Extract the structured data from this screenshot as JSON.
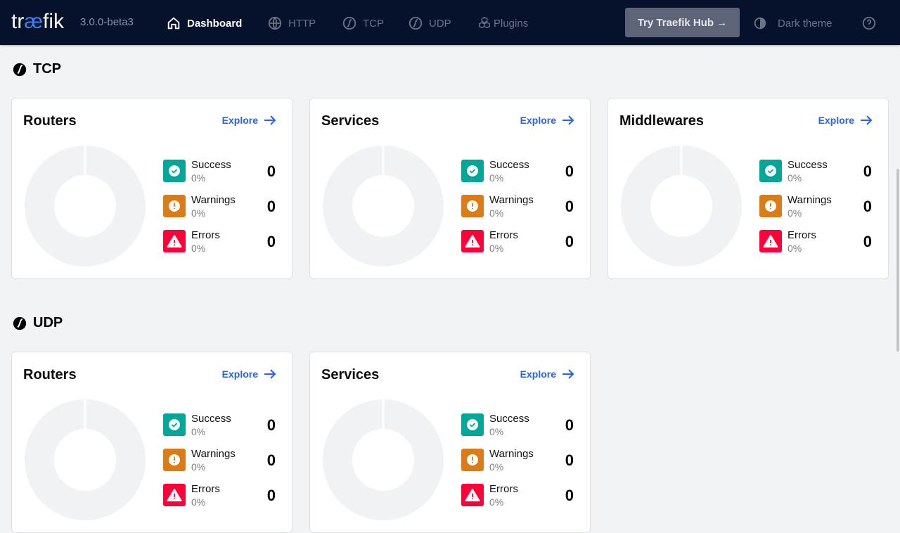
{
  "nav": {
    "logo": "traefik",
    "logo_parts": [
      "tr",
      "æ",
      "fik"
    ],
    "version": "3.0.0-beta3",
    "links": [
      {
        "label": "Dashboard",
        "icon": "home-icon",
        "active": true
      },
      {
        "label": "HTTP",
        "icon": "globe-icon"
      },
      {
        "label": "TCP",
        "icon": "tcp-icon"
      },
      {
        "label": "UDP",
        "icon": "udp-icon"
      },
      {
        "label": "Plugins",
        "icon": "cubes-icon"
      }
    ],
    "hub": "Try Traefik Hub →",
    "theme": "Dark theme",
    "help_icon": "help-icon"
  },
  "colors": {
    "success": "#00a697",
    "warning": "#db7b15",
    "error": "#ff0039",
    "link": "#2563eb"
  },
  "sections": [
    {
      "title": "TCP",
      "cards": [
        {
          "title": "Routers",
          "explore": "Explore",
          "stats": [
            {
              "label": "Success",
              "pct": "0%",
              "value": "0"
            },
            {
              "label": "Warnings",
              "pct": "0%",
              "value": "0"
            },
            {
              "label": "Errors",
              "pct": "0%",
              "value": "0"
            }
          ]
        },
        {
          "title": "Services",
          "explore": "Explore",
          "stats": [
            {
              "label": "Success",
              "pct": "0%",
              "value": "0"
            },
            {
              "label": "Warnings",
              "pct": "0%",
              "value": "0"
            },
            {
              "label": "Errors",
              "pct": "0%",
              "value": "0"
            }
          ]
        },
        {
          "title": "Middlewares",
          "explore": "Explore",
          "stats": [
            {
              "label": "Success",
              "pct": "0%",
              "value": "0"
            },
            {
              "label": "Warnings",
              "pct": "0%",
              "value": "0"
            },
            {
              "label": "Errors",
              "pct": "0%",
              "value": "0"
            }
          ]
        }
      ]
    },
    {
      "title": "UDP",
      "cards": [
        {
          "title": "Routers",
          "explore": "Explore",
          "stats": [
            {
              "label": "Success",
              "pct": "0%",
              "value": "0"
            },
            {
              "label": "Warnings",
              "pct": "0%",
              "value": "0"
            },
            {
              "label": "Errors",
              "pct": "0%",
              "value": "0"
            }
          ]
        },
        {
          "title": "Services",
          "explore": "Explore",
          "stats": [
            {
              "label": "Success",
              "pct": "0%",
              "value": "0"
            },
            {
              "label": "Warnings",
              "pct": "0%",
              "value": "0"
            },
            {
              "label": "Errors",
              "pct": "0%",
              "value": "0"
            }
          ]
        }
      ]
    }
  ]
}
